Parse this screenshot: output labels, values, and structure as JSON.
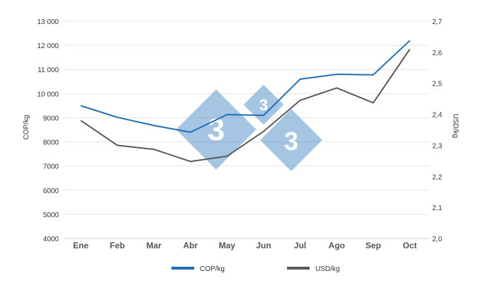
{
  "chart_data": {
    "type": "line",
    "categories": [
      "Ene",
      "Feb",
      "Mar",
      "Abr",
      "May",
      "Jun",
      "Jul",
      "Ago",
      "Sep",
      "Oct"
    ],
    "series": [
      {
        "name": "COP/kg",
        "axis": "left",
        "color": "#1f6fb5",
        "values": [
          9500,
          9020,
          8680,
          8400,
          9130,
          9100,
          10600,
          10800,
          10780,
          12200
        ]
      },
      {
        "name": "USD/kg",
        "axis": "right",
        "color": "#5a5a5a",
        "values": [
          2.38,
          2.3,
          2.287,
          2.248,
          2.265,
          2.345,
          2.445,
          2.485,
          2.437,
          2.61
        ]
      }
    ],
    "y_left": {
      "label": "COP/kg",
      "range": [
        4000,
        13000
      ],
      "tick_labels": [
        "4000",
        "5000",
        "6000",
        "7000",
        "8000",
        "9000",
        "10 000",
        "11 000",
        "12 000",
        "13 000"
      ]
    },
    "y_right": {
      "label": "USD/kg",
      "range": [
        2.0,
        2.7
      ],
      "tick_labels": [
        "2,0",
        "2,1",
        "2,2",
        "2,3",
        "2,4",
        "2,5",
        "2,6",
        "2,7"
      ]
    },
    "grid": true,
    "legend_position": "bottom"
  }
}
